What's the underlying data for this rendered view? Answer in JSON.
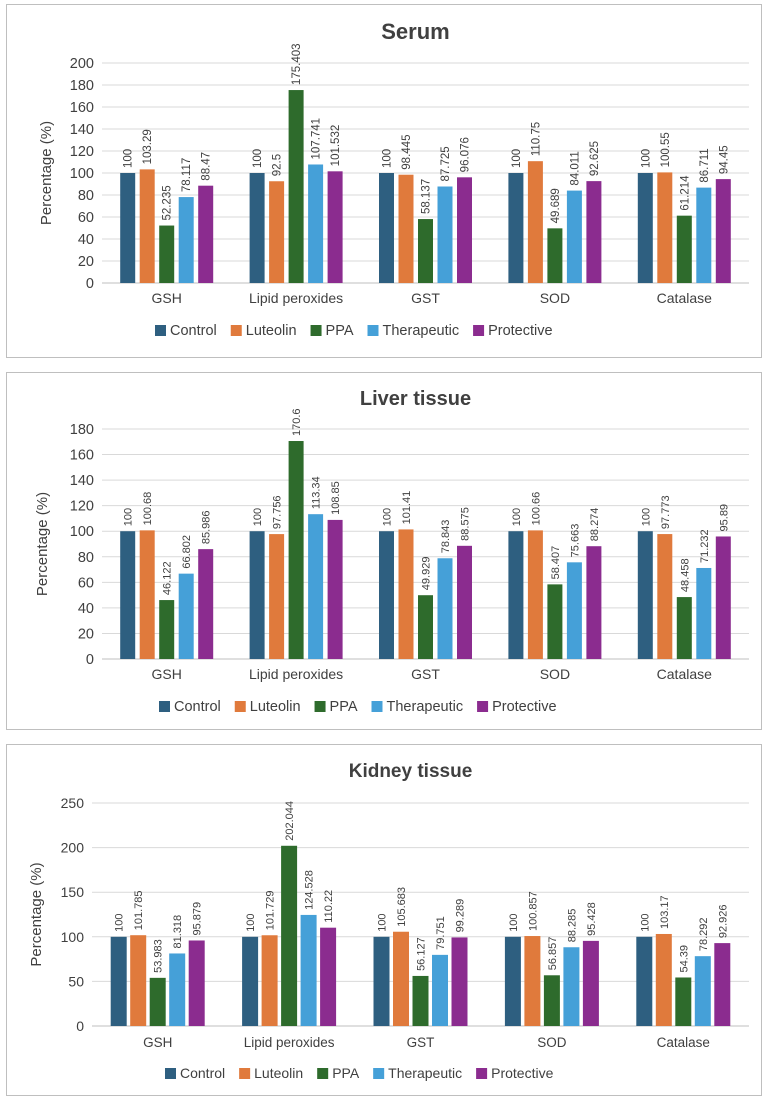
{
  "series_colors": [
    "#2e5f80",
    "#e07a3c",
    "#2e6b2c",
    "#45a0d8",
    "#8b2c8f"
  ],
  "chart_data": [
    {
      "type": "bar",
      "title": "Serum",
      "xlabel": "",
      "ylabel": "Percentage (%)",
      "ylim": [
        0,
        200
      ],
      "yticks": [
        0,
        20,
        40,
        60,
        80,
        100,
        120,
        140,
        160,
        180,
        200
      ],
      "categories": [
        "GSH",
        "Lipid peroxides",
        "GST",
        "SOD",
        "Catalase"
      ],
      "legend_position": "bottom",
      "series": [
        {
          "name": "Control",
          "values": [
            100,
            100,
            100,
            100,
            100
          ],
          "labels": [
            "100",
            "100",
            "100",
            "100",
            "100"
          ]
        },
        {
          "name": "Luteolin",
          "values": [
            103.29,
            92.5,
            98.445,
            110.75,
            100.55
          ],
          "labels": [
            "103.29",
            "92.5",
            "98.445",
            "110.75",
            "100.55"
          ]
        },
        {
          "name": "PPA",
          "values": [
            52.235,
            175.403,
            58.137,
            49.689,
            61.214
          ],
          "labels": [
            "52.235",
            "175.403",
            "58.137",
            "49.689",
            "61.214"
          ]
        },
        {
          "name": "Therapeutic",
          "values": [
            78.117,
            107.741,
            87.725,
            84.011,
            86.711
          ],
          "labels": [
            "78.117",
            "107.741",
            "87.725",
            "84.011",
            "86.711"
          ]
        },
        {
          "name": "Protective",
          "values": [
            88.47,
            101.532,
            96.076,
            92.625,
            94.45
          ],
          "labels": [
            "88.47",
            "101.532",
            "96.076",
            "92.625",
            "94.45"
          ]
        }
      ]
    },
    {
      "type": "bar",
      "title": "Liver tissue",
      "xlabel": "",
      "ylabel": "Percentage (%)",
      "ylim": [
        0,
        180
      ],
      "yticks": [
        0,
        20,
        40,
        60,
        80,
        100,
        120,
        140,
        160,
        180
      ],
      "categories": [
        "GSH",
        "Lipid peroxides",
        "GST",
        "SOD",
        "Catalase"
      ],
      "legend_position": "bottom",
      "series": [
        {
          "name": "Control",
          "values": [
            100,
            100,
            100,
            100,
            100
          ],
          "labels": [
            "100",
            "100",
            "100",
            "100",
            "100"
          ]
        },
        {
          "name": "Luteolin",
          "values": [
            100.68,
            97.756,
            101.41,
            100.66,
            97.773
          ],
          "labels": [
            "100.68",
            "97.756",
            "101.41",
            "100.66",
            "97.773"
          ]
        },
        {
          "name": "PPA",
          "values": [
            46.122,
            170.6,
            49.929,
            58.407,
            48.458
          ],
          "labels": [
            "46.122",
            "170.6",
            "49.929",
            "58.407",
            "48.458"
          ]
        },
        {
          "name": "Therapeutic",
          "values": [
            66.802,
            113.34,
            78.843,
            75.663,
            71.232
          ],
          "labels": [
            "66.802",
            "113.34",
            "78.843",
            "75.663",
            "71.232"
          ]
        },
        {
          "name": "Protective",
          "values": [
            85.986,
            108.85,
            88.575,
            88.274,
            95.89
          ],
          "labels": [
            "85.986",
            "108.85",
            "88.575",
            "88.274",
            "95.89"
          ]
        }
      ]
    },
    {
      "type": "bar",
      "title": "Kidney tissue",
      "xlabel": "",
      "ylabel": "Percentage (%)",
      "ylim": [
        0,
        250
      ],
      "yticks": [
        0,
        50,
        100,
        150,
        200,
        250
      ],
      "categories": [
        "GSH",
        "Lipid peroxides",
        "GST",
        "SOD",
        "Catalase"
      ],
      "legend_position": "bottom",
      "series": [
        {
          "name": "Control",
          "values": [
            100,
            100,
            100,
            100,
            100
          ],
          "labels": [
            "100",
            "100",
            "100",
            "100",
            "100"
          ]
        },
        {
          "name": "Luteolin",
          "values": [
            101.785,
            101.729,
            105.683,
            100.857,
            103.17
          ],
          "labels": [
            "101.785",
            "101.729",
            "105.683",
            "100.857",
            "103.17"
          ]
        },
        {
          "name": "PPA",
          "values": [
            53.983,
            202.044,
            56.127,
            56.857,
            54.39
          ],
          "labels": [
            "53.983",
            "202.044",
            "56.127",
            "56.857",
            "54.39"
          ]
        },
        {
          "name": "Therapeutic",
          "values": [
            81.318,
            124.528,
            79.751,
            88.285,
            78.292
          ],
          "labels": [
            "81.318",
            "124.528",
            "79.751",
            "88.285",
            "78.292"
          ]
        },
        {
          "name": "Protective",
          "values": [
            95.879,
            110.22,
            99.289,
            95.428,
            92.926
          ],
          "labels": [
            "95.879",
            "110.22",
            "99.289",
            "95.428",
            "92.926"
          ]
        }
      ]
    }
  ]
}
